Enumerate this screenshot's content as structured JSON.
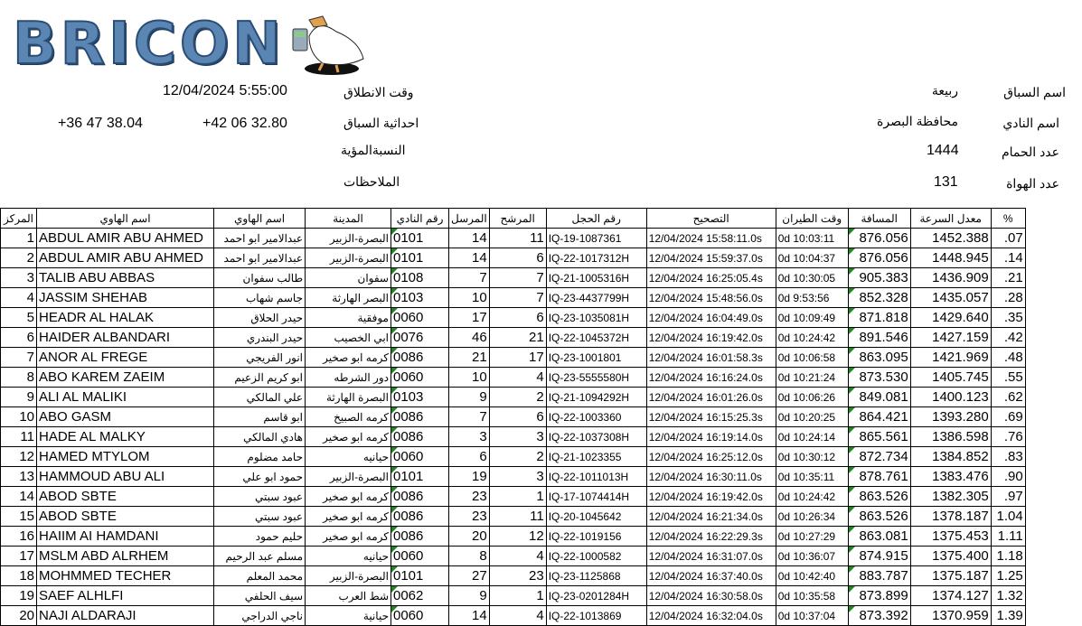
{
  "logo": {
    "text": "BRICON"
  },
  "header": {
    "start_label": "وقت الانطلاق",
    "start_value": "12/04/2024 5:55:00",
    "coords_label": "احداثية السباق",
    "coord_lat": "+42 06 32.80",
    "coord_lon": "+36 47 38.04",
    "percent_label": "النسبةالمؤية",
    "notes_label": "الملاحظات",
    "race_name_label": "اسم السباق",
    "race_name": "ربيعة",
    "club_name_label": "اسم النادي",
    "club_name": "محافظة البصرة",
    "pigeons_label": "عدد الحمام",
    "pigeons": "1444",
    "fanciers_label": "عدد الهواة",
    "fanciers": "131"
  },
  "columns": [
    "المركز",
    "اسم الهاوي",
    "اسم الهاوي",
    "المدينة",
    "رقم النادي",
    "المرسل",
    "المرشح",
    "رقم الحجل",
    "التصحيح",
    "وقت الطيران",
    "المسافة",
    "معدل السرعة",
    "%"
  ],
  "rows": [
    [
      "1",
      "ABDUL AMIR ABU AHMED",
      "عبدالامير ابو احمد",
      "البصرة-الزبير",
      "0101",
      "14",
      "11",
      "IQ-19-1087361",
      "12/04/2024 15:58:11.0s",
      "0d 10:03:11",
      "876.056",
      "1452.388",
      ".07"
    ],
    [
      "2",
      "ABDUL AMIR ABU AHMED",
      "عبدالامير ابو احمد",
      "البصرة-الزبير",
      "0101",
      "14",
      "6",
      "IQ-22-1017312H",
      "12/04/2024 15:59:37.0s",
      "0d 10:04:37",
      "876.056",
      "1448.945",
      ".14"
    ],
    [
      "3",
      "TALIB ABU ABBAS",
      "طالب سفوان",
      "سفوان",
      "0108",
      "7",
      "7",
      "IQ-21-1005316H",
      "12/04/2024 16:25:05.4s",
      "0d 10:30:05",
      "905.383",
      "1436.909",
      ".21"
    ],
    [
      "4",
      "JASSIM SHEHAB",
      "جاسم شهاب",
      "البصر الهارثة",
      "0103",
      "10",
      "7",
      "IQ-23-4437799H",
      "12/04/2024 15:48:56.0s",
      "0d 9:53:56",
      "852.328",
      "1435.057",
      ".28"
    ],
    [
      "5",
      "HEADR AL HALAK",
      "حيدر الحلاق",
      "موفقية",
      "0060",
      "17",
      "6",
      "IQ-23-1035081H",
      "12/04/2024 16:04:49.0s",
      "0d 10:09:49",
      "871.818",
      "1429.640",
      ".35"
    ],
    [
      "6",
      "HAIDER ALBANDARI",
      "حيدر البندري",
      "ابي الخصيب",
      "0076",
      "46",
      "21",
      "IQ-22-1045372H",
      "12/04/2024 16:19:42.0s",
      "0d 10:24:42",
      "891.546",
      "1427.159",
      ".42"
    ],
    [
      "7",
      "ANOR AL FREGE",
      "انور الفريجي",
      "كرمه ابو صخير",
      "0086",
      "21",
      "17",
      "IQ-23-1001801",
      "12/04/2024 16:01:58.3s",
      "0d 10:06:58",
      "863.095",
      "1421.969",
      ".48"
    ],
    [
      "8",
      "ABO KAREM ZAEIM",
      "ابو كريم الزعيم",
      "دور الشرطه",
      "0060",
      "10",
      "4",
      "IQ-23-5555580H",
      "12/04/2024 16:16:24.0s",
      "0d 10:21:24",
      "873.530",
      "1405.745",
      ".55"
    ],
    [
      "9",
      "ALI AL MALIKI",
      "علي المالكي",
      "البصرة الهارثة",
      "0103",
      "9",
      "2",
      "IQ-21-1094292H",
      "12/04/2024 16:01:26.0s",
      "0d 10:06:26",
      "849.081",
      "1400.123",
      ".62"
    ],
    [
      "10",
      "ABO GASM",
      "ابو قاسم",
      "كرمه الصبيخ",
      "0086",
      "7",
      "6",
      "IQ-22-1003360",
      "12/04/2024 16:15:25.3s",
      "0d 10:20:25",
      "864.421",
      "1393.280",
      ".69"
    ],
    [
      "11",
      "HADE AL MALKY",
      "هادي المالكي",
      "كرمه ابو صخير",
      "0086",
      "3",
      "3",
      "IQ-22-1037308H",
      "12/04/2024 16:19:14.0s",
      "0d 10:24:14",
      "865.561",
      "1386.598",
      ".76"
    ],
    [
      "12",
      "HAMED MTYLOM",
      "حامد مضلوم",
      "حيانيه",
      "0060",
      "6",
      "2",
      "IQ-21-1023355",
      "12/04/2024 16:25:12.0s",
      "0d 10:30:12",
      "872.734",
      "1384.852",
      ".83"
    ],
    [
      "13",
      "HAMMOUD ABU ALI",
      "حمود ابو علي",
      "البصرة-الزبير",
      "0101",
      "19",
      "3",
      "IQ-22-1011013H",
      "12/04/2024 16:30:11.0s",
      "0d 10:35:11",
      "878.761",
      "1383.476",
      ".90"
    ],
    [
      "14",
      "ABOD SBTE",
      "عبود سبتي",
      "كرمه ابو صخير",
      "0086",
      "23",
      "1",
      "IQ-17-1074414H",
      "12/04/2024 16:19:42.0s",
      "0d 10:24:42",
      "863.526",
      "1382.305",
      ".97"
    ],
    [
      "15",
      "ABOD SBTE",
      "عبود سبتي",
      "كرمه ابو صخير",
      "0086",
      "23",
      "11",
      "IQ-20-1045642",
      "12/04/2024 16:21:34.0s",
      "0d 10:26:34",
      "863.526",
      "1378.187",
      "1.04"
    ],
    [
      "16",
      "HAIIM AI HAMDANI",
      "حليم حمود",
      "كرمه ابو صخير",
      "0086",
      "20",
      "12",
      "IQ-22-1019156",
      "12/04/2024 16:22:29.3s",
      "0d 10:27:29",
      "863.081",
      "1375.453",
      "1.11"
    ],
    [
      "17",
      "MSLM ABD ALRHEM",
      "مسلم عبد الرحيم",
      "حيانيه",
      "0060",
      "8",
      "4",
      "IQ-22-1000582",
      "12/04/2024 16:31:07.0s",
      "0d 10:36:07",
      "874.915",
      "1375.400",
      "1.18"
    ],
    [
      "18",
      "MOHMMED TECHER",
      "محمد المعلم",
      "البصرة-الزبير",
      "0101",
      "27",
      "23",
      "IQ-23-1125868",
      "12/04/2024 16:37:40.0s",
      "0d 10:42:40",
      "883.787",
      "1375.187",
      "1.25"
    ],
    [
      "19",
      "SAEF ALHLFI",
      "سيف الحلفي",
      "شط العرب",
      "0062",
      "9",
      "1",
      "IQ-23-0201284H",
      "12/04/2024 16:30:58.0s",
      "0d 10:35:58",
      "873.899",
      "1374.127",
      "1.32"
    ],
    [
      "20",
      "NAJI ALDARAJI",
      "ناجي الدراجي",
      "حيانية",
      "0060",
      "14",
      "4",
      "IQ-22-1013869",
      "12/04/2024 16:32:04.0s",
      "0d 10:37:04",
      "873.392",
      "1370.959",
      "1.39"
    ]
  ]
}
